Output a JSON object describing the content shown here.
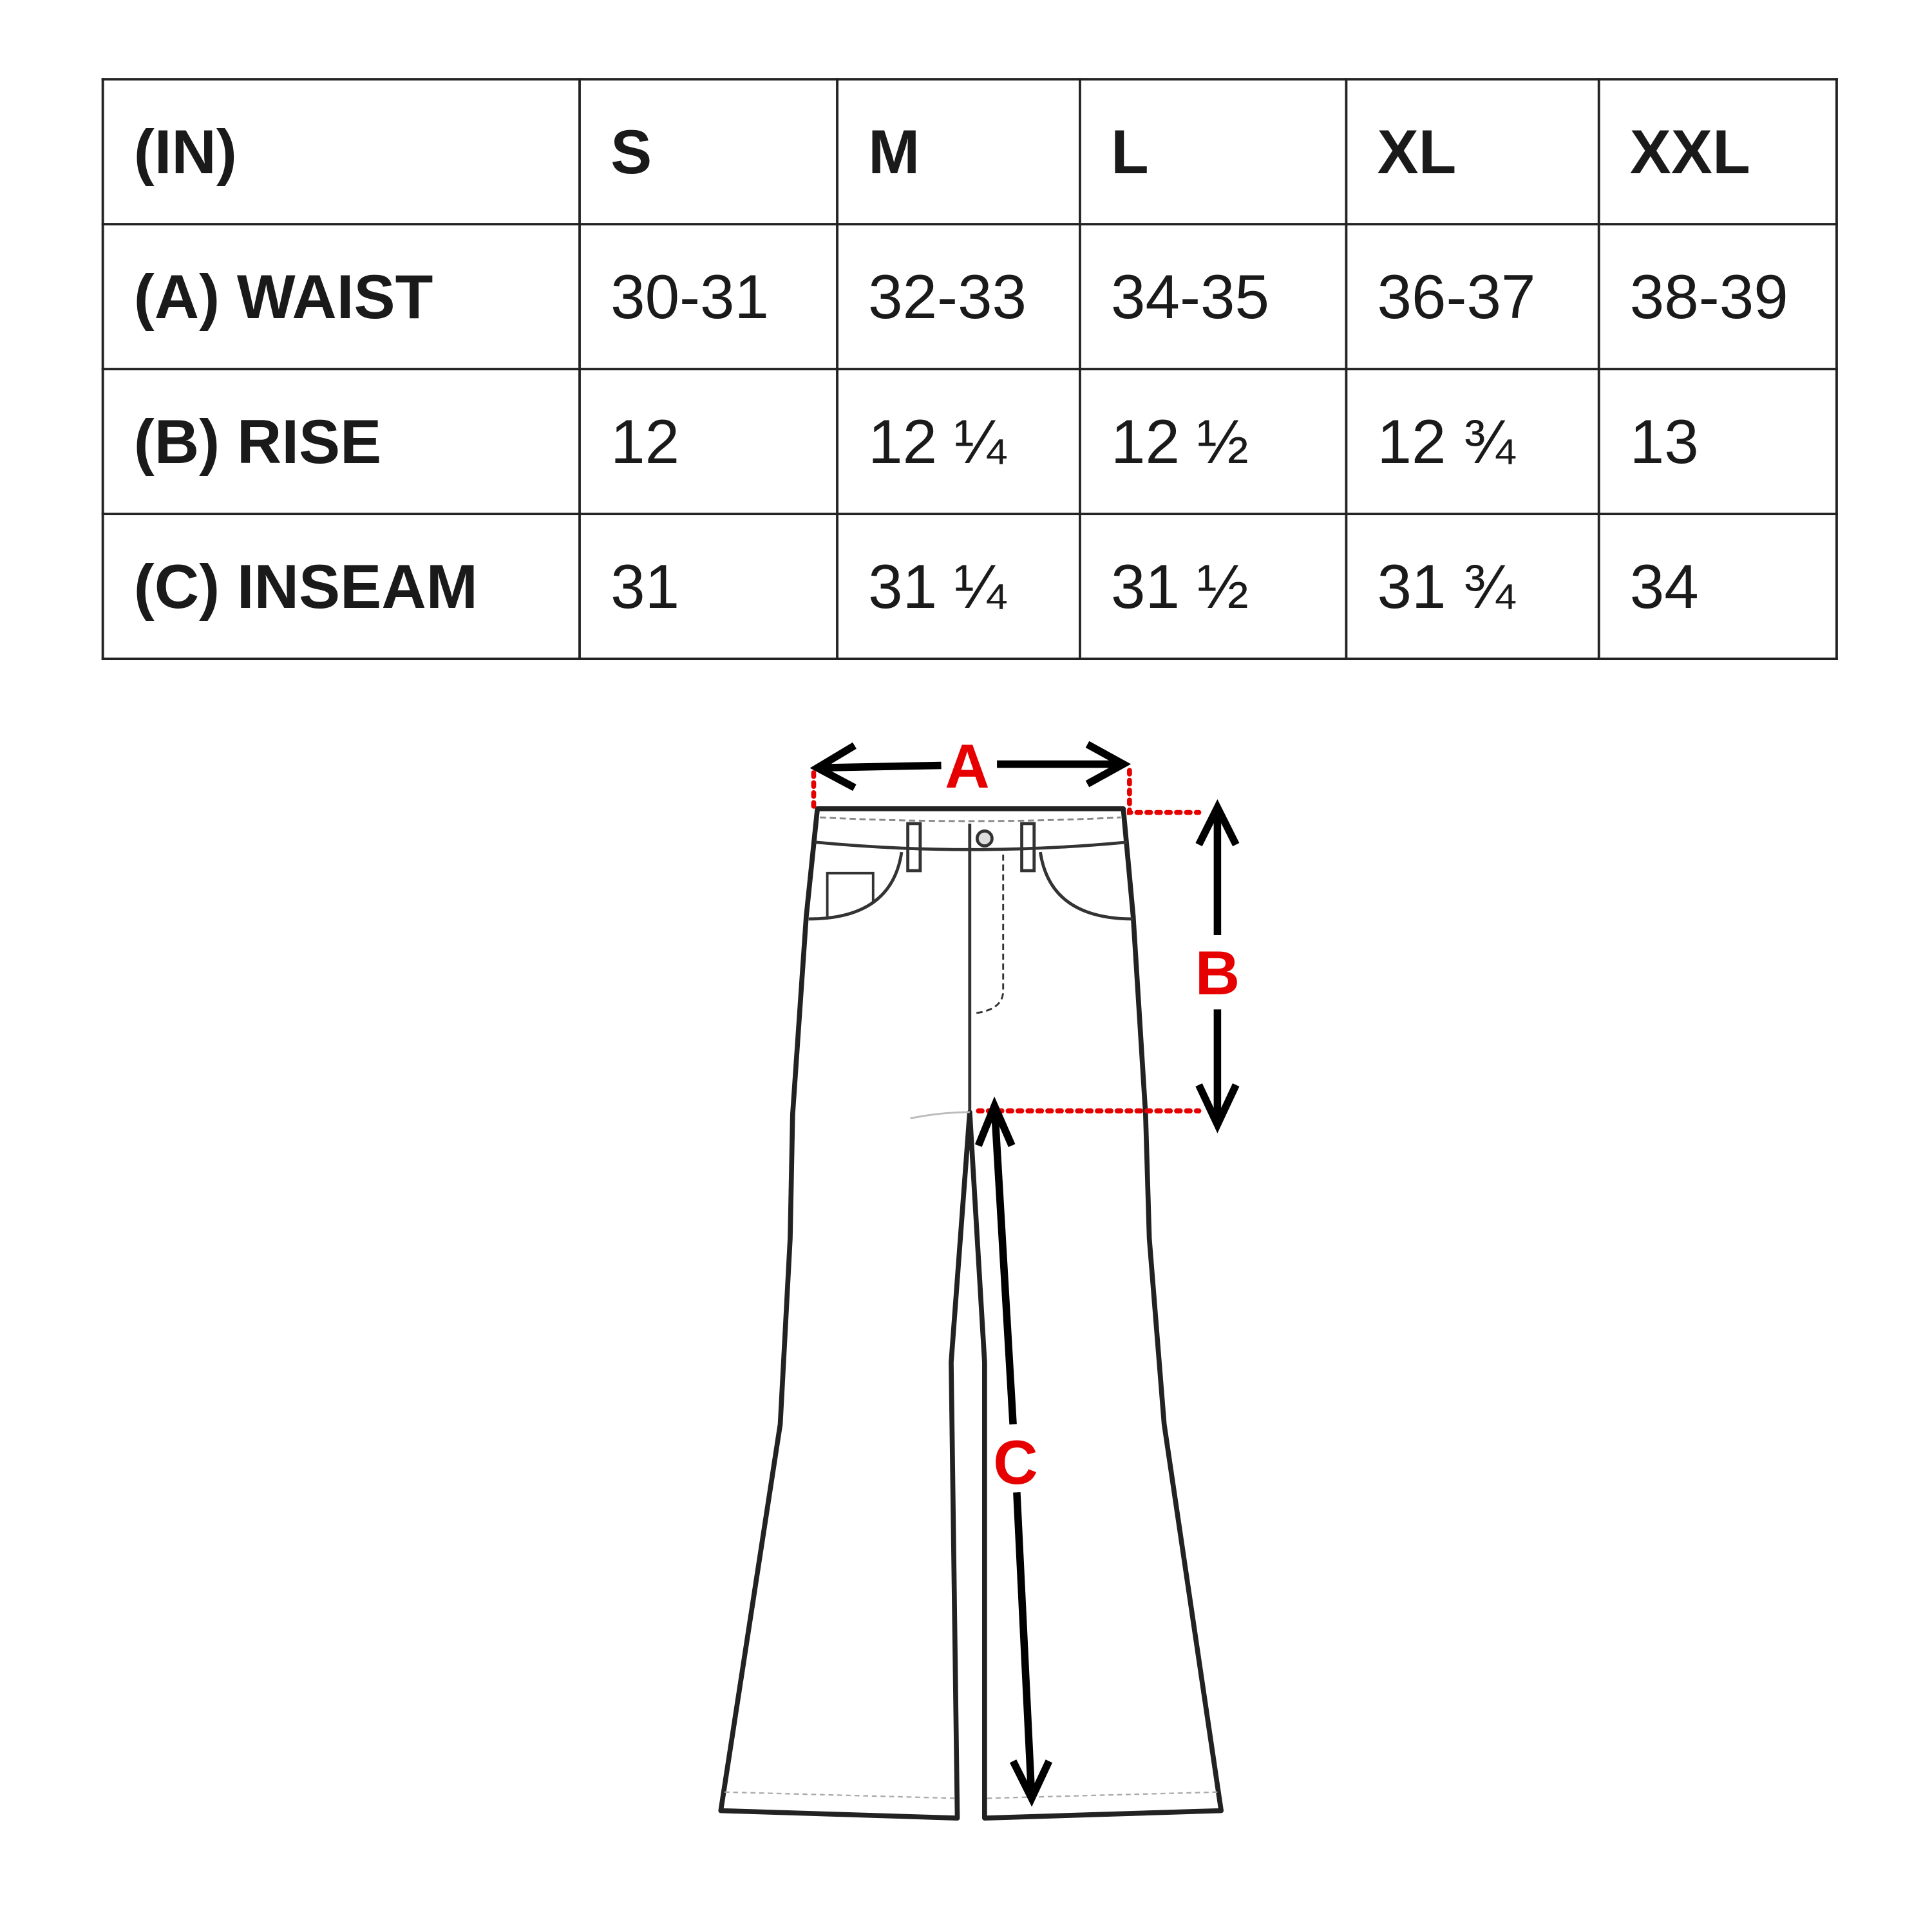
{
  "table": {
    "header": [
      "(IN)",
      "S",
      "M",
      "L",
      "XL",
      "XXL"
    ],
    "rows": [
      {
        "label": "(A) WAIST",
        "values": [
          "30-31",
          "32-33",
          "34-35",
          "36-37",
          "38-39"
        ]
      },
      {
        "label": "(B) RISE",
        "values": [
          "12",
          "12 ¼",
          "12 ½",
          "12 ¾",
          "13"
        ]
      },
      {
        "label": "(C) INSEAM",
        "values": [
          "31",
          "31 ¼",
          "31 ½",
          "31 ¾",
          "34"
        ]
      }
    ]
  },
  "diagram": {
    "labels": {
      "a": "A",
      "b": "B",
      "c": "C"
    },
    "colors": {
      "measure_label": "#e60000",
      "outline": "#222222"
    }
  }
}
